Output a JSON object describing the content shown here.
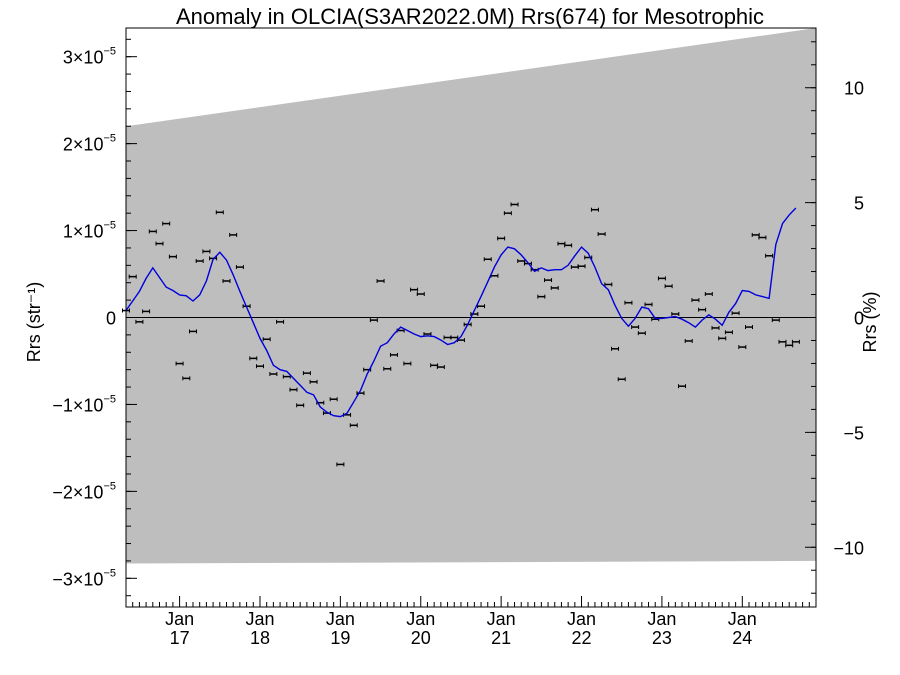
{
  "chart_data": {
    "type": "scatter",
    "title": "Anomaly in OLCIA(S3AR2022.0M) Rrs(674) for Mesotrophic",
    "ylabel_left": "Rrs (str⁻¹)",
    "ylabel_right": "Rrs (%)",
    "x_tick_labels": [
      {
        "month": "Jan",
        "year": "17"
      },
      {
        "month": "Jan",
        "year": "18"
      },
      {
        "month": "Jan",
        "year": "19"
      },
      {
        "month": "Jan",
        "year": "20"
      },
      {
        "month": "Jan",
        "year": "21"
      },
      {
        "month": "Jan",
        "year": "22"
      },
      {
        "month": "Jan",
        "year": "23"
      },
      {
        "month": "Jan",
        "year": "24"
      }
    ],
    "xlim": [
      "2016-05",
      "2024-12"
    ],
    "ylim_left": [
      -3.33e-05,
      3.33e-05
    ],
    "ylim_right": [
      -12.6,
      12.6
    ],
    "y_left_ticks": [
      {
        "value": 3e-05,
        "mant": "3×10",
        "exp": "−5"
      },
      {
        "value": 2e-05,
        "mant": "2×10",
        "exp": "−5"
      },
      {
        "value": 1e-05,
        "mant": "1×10",
        "exp": "−5"
      },
      {
        "value": 0,
        "mant": "0",
        "exp": ""
      },
      {
        "value": -1e-05,
        "mant": "−1×10",
        "exp": "−5"
      },
      {
        "value": -2e-05,
        "mant": "−2×10",
        "exp": "−5"
      },
      {
        "value": -3e-05,
        "mant": "−3×10",
        "exp": "−5"
      }
    ],
    "y_right_ticks": [
      {
        "value": 10,
        "label": "10"
      },
      {
        "value": 5,
        "label": "5"
      },
      {
        "value": 0,
        "label": "0"
      },
      {
        "value": -5,
        "label": "−5"
      },
      {
        "value": -10,
        "label": "−10"
      }
    ],
    "band": {
      "upper_start": 2.2e-05,
      "upper_end": 3.37e-05,
      "lower_start": -2.83e-05,
      "lower_end": -2.8e-05,
      "color": "#bebebe"
    },
    "points": [
      {
        "x": "2016-05",
        "y": 8e-07
      },
      {
        "x": "2016-06",
        "y": 4.7e-06
      },
      {
        "x": "2016-07",
        "y": -5e-07
      },
      {
        "x": "2016-08",
        "y": 7e-07
      },
      {
        "x": "2016-09",
        "y": 9.9e-06
      },
      {
        "x": "2016-10",
        "y": 8.5e-06
      },
      {
        "x": "2016-11",
        "y": 1.08e-05
      },
      {
        "x": "2016-12",
        "y": 7e-06
      },
      {
        "x": "2017-01",
        "y": -5.3e-06
      },
      {
        "x": "2017-02",
        "y": -7e-06
      },
      {
        "x": "2017-03",
        "y": -1.6e-06
      },
      {
        "x": "2017-04",
        "y": 6.5e-06
      },
      {
        "x": "2017-05",
        "y": 7.6e-06
      },
      {
        "x": "2017-06",
        "y": 6.8e-06
      },
      {
        "x": "2017-07",
        "y": 1.21e-05
      },
      {
        "x": "2017-08",
        "y": 4.2e-06
      },
      {
        "x": "2017-09",
        "y": 9.5e-06
      },
      {
        "x": "2017-10",
        "y": 5.8e-06
      },
      {
        "x": "2017-11",
        "y": 1.3e-06
      },
      {
        "x": "2017-12",
        "y": -4.7e-06
      },
      {
        "x": "2018-01",
        "y": -5.6e-06
      },
      {
        "x": "2018-02",
        "y": -2.5e-06
      },
      {
        "x": "2018-03",
        "y": -6.5e-06
      },
      {
        "x": "2018-04",
        "y": -5e-07
      },
      {
        "x": "2018-05",
        "y": -6.8e-06
      },
      {
        "x": "2018-06",
        "y": -8.3e-06
      },
      {
        "x": "2018-07",
        "y": -1.01e-05
      },
      {
        "x": "2018-08",
        "y": -6.4e-06
      },
      {
        "x": "2018-09",
        "y": -7.4e-06
      },
      {
        "x": "2018-10",
        "y": -9.8e-06
      },
      {
        "x": "2018-11",
        "y": -1.1e-05
      },
      {
        "x": "2018-12",
        "y": -9.4e-06
      },
      {
        "x": "2019-01",
        "y": -1.69e-05
      },
      {
        "x": "2019-02",
        "y": -1.12e-05
      },
      {
        "x": "2019-03",
        "y": -1.24e-05
      },
      {
        "x": "2019-04",
        "y": -8.7e-06
      },
      {
        "x": "2019-05",
        "y": -6e-06
      },
      {
        "x": "2019-06",
        "y": -3e-07
      },
      {
        "x": "2019-07",
        "y": 4.2e-06
      },
      {
        "x": "2019-08",
        "y": -5.9e-06
      },
      {
        "x": "2019-09",
        "y": -4.3e-06
      },
      {
        "x": "2019-10",
        "y": -1.5e-06
      },
      {
        "x": "2019-11",
        "y": -5.3e-06
      },
      {
        "x": "2019-12",
        "y": 3.2e-06
      },
      {
        "x": "2020-01",
        "y": 2.7e-06
      },
      {
        "x": "2020-02",
        "y": -1.9e-06
      },
      {
        "x": "2020-03",
        "y": -5.5e-06
      },
      {
        "x": "2020-04",
        "y": -5.7e-06
      },
      {
        "x": "2020-05",
        "y": -2.3e-06
      },
      {
        "x": "2020-06",
        "y": -2.3e-06
      },
      {
        "x": "2020-07",
        "y": -2.6e-06
      },
      {
        "x": "2020-08",
        "y": -8e-07
      },
      {
        "x": "2020-09",
        "y": 4e-07
      },
      {
        "x": "2020-10",
        "y": 1.3e-06
      },
      {
        "x": "2020-11",
        "y": 6.7e-06
      },
      {
        "x": "2020-12",
        "y": 4.8e-06
      },
      {
        "x": "2021-01",
        "y": 9.1e-06
      },
      {
        "x": "2021-02",
        "y": 1.2e-05
      },
      {
        "x": "2021-03",
        "y": 1.3e-05
      },
      {
        "x": "2021-04",
        "y": 6.5e-06
      },
      {
        "x": "2021-05",
        "y": 6.2e-06
      },
      {
        "x": "2021-06",
        "y": 5.5e-06
      },
      {
        "x": "2021-07",
        "y": 2.4e-06
      },
      {
        "x": "2021-08",
        "y": 4.3e-06
      },
      {
        "x": "2021-09",
        "y": 3.4e-06
      },
      {
        "x": "2021-10",
        "y": 8.5e-06
      },
      {
        "x": "2021-11",
        "y": 8.3e-06
      },
      {
        "x": "2021-12",
        "y": 5.8e-06
      },
      {
        "x": "2022-01",
        "y": 5.9e-06
      },
      {
        "x": "2022-02",
        "y": 6.9e-06
      },
      {
        "x": "2022-03",
        "y": 1.24e-05
      },
      {
        "x": "2022-04",
        "y": 9.6e-06
      },
      {
        "x": "2022-05",
        "y": 3.8e-06
      },
      {
        "x": "2022-06",
        "y": -3.6e-06
      },
      {
        "x": "2022-07",
        "y": -7.1e-06
      },
      {
        "x": "2022-08",
        "y": 1.7e-06
      },
      {
        "x": "2022-09",
        "y": -1.1e-06
      },
      {
        "x": "2022-10",
        "y": -1.8e-06
      },
      {
        "x": "2022-11",
        "y": 1.5e-06
      },
      {
        "x": "2022-12",
        "y": -2e-07
      },
      {
        "x": "2023-01",
        "y": 4.5e-06
      },
      {
        "x": "2023-02",
        "y": 3.6e-06
      },
      {
        "x": "2023-03",
        "y": 4e-07
      },
      {
        "x": "2023-04",
        "y": -7.9e-06
      },
      {
        "x": "2023-05",
        "y": -2.7e-06
      },
      {
        "x": "2023-06",
        "y": 2e-06
      },
      {
        "x": "2023-07",
        "y": 9e-07
      },
      {
        "x": "2023-08",
        "y": 2.7e-06
      },
      {
        "x": "2023-09",
        "y": -1.2e-06
      },
      {
        "x": "2023-10",
        "y": -2.4e-06
      },
      {
        "x": "2023-11",
        "y": -1.7e-06
      },
      {
        "x": "2023-12",
        "y": 5e-07
      },
      {
        "x": "2024-01",
        "y": -3.4e-06
      },
      {
        "x": "2024-02",
        "y": -1.1e-06
      },
      {
        "x": "2024-03",
        "y": 9.5e-06
      },
      {
        "x": "2024-04",
        "y": 9.2e-06
      },
      {
        "x": "2024-05",
        "y": 7.1e-06
      },
      {
        "x": "2024-06",
        "y": -3e-07
      },
      {
        "x": "2024-07",
        "y": -2.8e-06
      },
      {
        "x": "2024-08",
        "y": -3.2e-06
      },
      {
        "x": "2024-09",
        "y": -2.8e-06
      }
    ],
    "running_mean": {
      "color": "#0000dd",
      "points": [
        {
          "x": "2016-05",
          "y": 8e-07
        },
        {
          "x": "2016-06",
          "y": 1.9e-06
        },
        {
          "x": "2016-07",
          "y": 3e-06
        },
        {
          "x": "2016-08",
          "y": 4.5e-06
        },
        {
          "x": "2016-09",
          "y": 5.7e-06
        },
        {
          "x": "2016-10",
          "y": 4.6e-06
        },
        {
          "x": "2016-11",
          "y": 3.5e-06
        },
        {
          "x": "2016-12",
          "y": 3.1e-06
        },
        {
          "x": "2017-01",
          "y": 2.6e-06
        },
        {
          "x": "2017-02",
          "y": 2.5e-06
        },
        {
          "x": "2017-03",
          "y": 1.9e-06
        },
        {
          "x": "2017-04",
          "y": 2.6e-06
        },
        {
          "x": "2017-05",
          "y": 4.2e-06
        },
        {
          "x": "2017-06",
          "y": 6.7e-06
        },
        {
          "x": "2017-07",
          "y": 7.5e-06
        },
        {
          "x": "2017-08",
          "y": 6.6e-06
        },
        {
          "x": "2017-09",
          "y": 4.9e-06
        },
        {
          "x": "2017-10",
          "y": 3e-06
        },
        {
          "x": "2017-11",
          "y": 1.2e-06
        },
        {
          "x": "2017-12",
          "y": -6e-07
        },
        {
          "x": "2018-01",
          "y": -2.4e-06
        },
        {
          "x": "2018-02",
          "y": -3.8e-06
        },
        {
          "x": "2018-03",
          "y": -5.5e-06
        },
        {
          "x": "2018-04",
          "y": -6e-06
        },
        {
          "x": "2018-05",
          "y": -6.2e-06
        },
        {
          "x": "2018-06",
          "y": -7e-06
        },
        {
          "x": "2018-07",
          "y": -7.8e-06
        },
        {
          "x": "2018-08",
          "y": -8.6e-06
        },
        {
          "x": "2018-09",
          "y": -8.9e-06
        },
        {
          "x": "2018-10",
          "y": -1.03e-05
        },
        {
          "x": "2018-11",
          "y": -1.09e-05
        },
        {
          "x": "2018-12",
          "y": -1.13e-05
        },
        {
          "x": "2019-01",
          "y": -1.14e-05
        },
        {
          "x": "2019-02",
          "y": -1.1e-05
        },
        {
          "x": "2019-03",
          "y": -9.7e-06
        },
        {
          "x": "2019-04",
          "y": -8.4e-06
        },
        {
          "x": "2019-05",
          "y": -6.5e-06
        },
        {
          "x": "2019-06",
          "y": -5e-06
        },
        {
          "x": "2019-07",
          "y": -3.3e-06
        },
        {
          "x": "2019-08",
          "y": -2.9e-06
        },
        {
          "x": "2019-09",
          "y": -1.9e-06
        },
        {
          "x": "2019-10",
          "y": -1.1e-06
        },
        {
          "x": "2019-11",
          "y": -1.5e-06
        },
        {
          "x": "2019-12",
          "y": -1.9e-06
        },
        {
          "x": "2020-01",
          "y": -2.2e-06
        },
        {
          "x": "2020-02",
          "y": -2.1e-06
        },
        {
          "x": "2020-03",
          "y": -2.2e-06
        },
        {
          "x": "2020-04",
          "y": -2.6e-06
        },
        {
          "x": "2020-05",
          "y": -3.1e-06
        },
        {
          "x": "2020-06",
          "y": -2.9e-06
        },
        {
          "x": "2020-07",
          "y": -2.2e-06
        },
        {
          "x": "2020-08",
          "y": -8e-07
        },
        {
          "x": "2020-09",
          "y": 8e-07
        },
        {
          "x": "2020-10",
          "y": 2.4e-06
        },
        {
          "x": "2020-11",
          "y": 4.1e-06
        },
        {
          "x": "2020-12",
          "y": 5.8e-06
        },
        {
          "x": "2021-01",
          "y": 7.2e-06
        },
        {
          "x": "2021-02",
          "y": 8.1e-06
        },
        {
          "x": "2021-03",
          "y": 7.9e-06
        },
        {
          "x": "2021-04",
          "y": 7.2e-06
        },
        {
          "x": "2021-05",
          "y": 6.3e-06
        },
        {
          "x": "2021-06",
          "y": 5.3e-06
        },
        {
          "x": "2021-07",
          "y": 5.7e-06
        },
        {
          "x": "2021-08",
          "y": 5.4e-06
        },
        {
          "x": "2021-09",
          "y": 5.5e-06
        },
        {
          "x": "2021-10",
          "y": 5.5e-06
        },
        {
          "x": "2021-11",
          "y": 6e-06
        },
        {
          "x": "2021-12",
          "y": 7.1e-06
        },
        {
          "x": "2022-01",
          "y": 8.1e-06
        },
        {
          "x": "2022-02",
          "y": 7.4e-06
        },
        {
          "x": "2022-03",
          "y": 5.8e-06
        },
        {
          "x": "2022-04",
          "y": 3.9e-06
        },
        {
          "x": "2022-05",
          "y": 3.2e-06
        },
        {
          "x": "2022-06",
          "y": 1.4e-06
        },
        {
          "x": "2022-07",
          "y": -1e-07
        },
        {
          "x": "2022-08",
          "y": -1e-06
        },
        {
          "x": "2022-09",
          "y": -1e-07
        },
        {
          "x": "2022-10",
          "y": 1.2e-06
        },
        {
          "x": "2022-11",
          "y": 1e-06
        },
        {
          "x": "2022-12",
          "y": -1e-07
        },
        {
          "x": "2023-01",
          "y": -1e-07
        },
        {
          "x": "2023-02",
          "y": 0.0
        },
        {
          "x": "2023-03",
          "y": 1e-07
        },
        {
          "x": "2023-04",
          "y": -2e-07
        },
        {
          "x": "2023-05",
          "y": -6e-07
        },
        {
          "x": "2023-06",
          "y": -1.1e-06
        },
        {
          "x": "2023-07",
          "y": -3e-07
        },
        {
          "x": "2023-08",
          "y": 3e-07
        },
        {
          "x": "2023-09",
          "y": -2e-07
        },
        {
          "x": "2023-10",
          "y": -9e-07
        },
        {
          "x": "2023-11",
          "y": 6e-07
        },
        {
          "x": "2023-12",
          "y": 1.6e-06
        },
        {
          "x": "2024-01",
          "y": 3.1e-06
        },
        {
          "x": "2024-02",
          "y": 3e-06
        },
        {
          "x": "2024-03",
          "y": 2.6e-06
        },
        {
          "x": "2024-04",
          "y": 2.4e-06
        },
        {
          "x": "2024-05",
          "y": 2.2e-06
        },
        {
          "x": "2024-06",
          "y": 8.4e-06
        },
        {
          "x": "2024-07",
          "y": 1.08e-05
        },
        {
          "x": "2024-08",
          "y": 1.18e-05
        },
        {
          "x": "2024-09",
          "y": 1.26e-05
        }
      ]
    },
    "zero_line": true,
    "grid": false,
    "legend": "none"
  }
}
